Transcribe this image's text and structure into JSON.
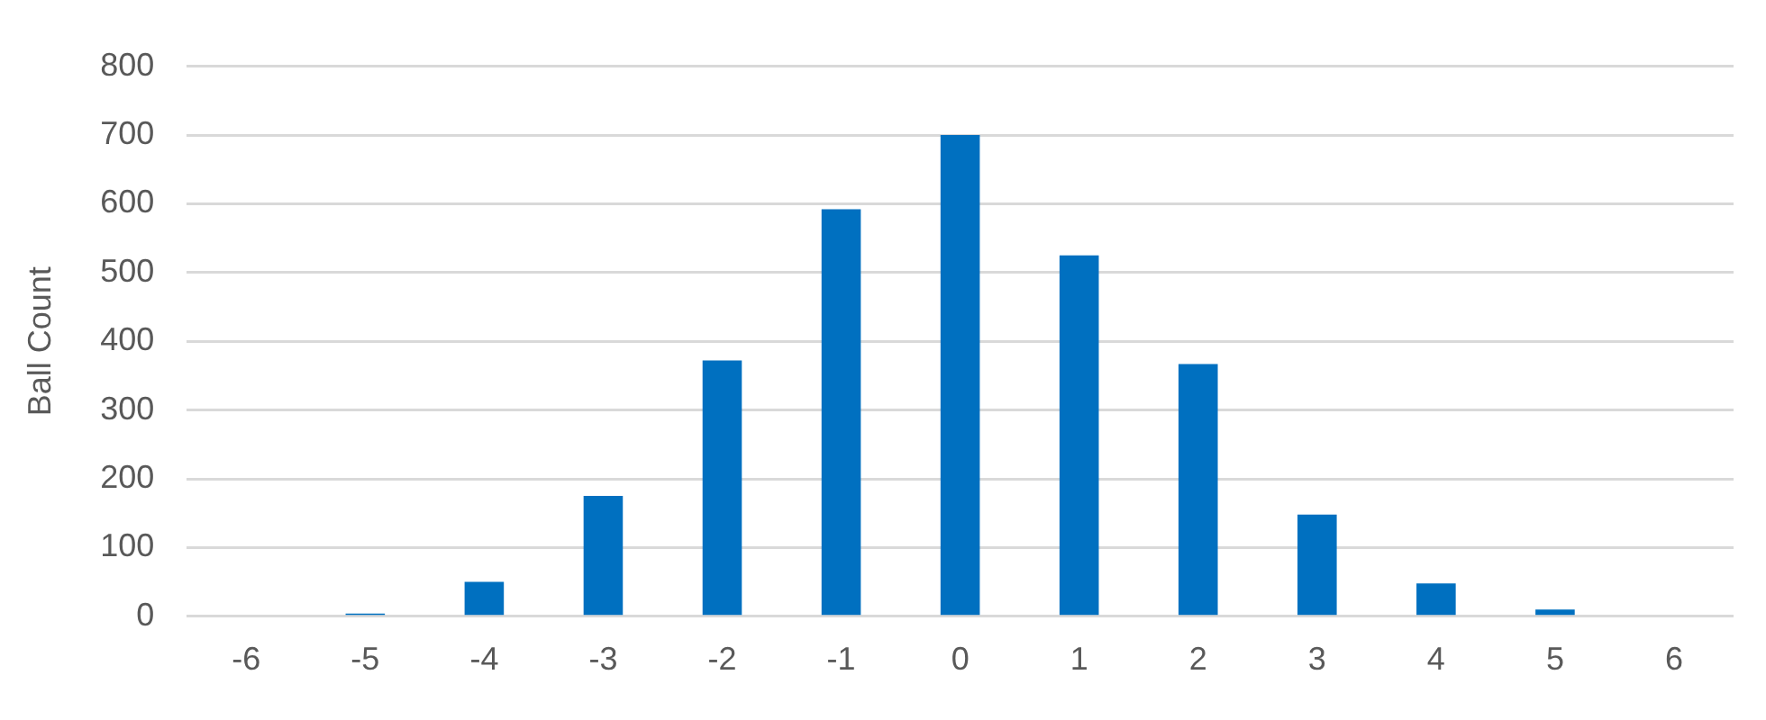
{
  "chart_data": {
    "type": "bar",
    "ylabel": "Ball Count",
    "categories": [
      "-6",
      "-5",
      "-4",
      "-3",
      "-2",
      "-1",
      "0",
      "1",
      "2",
      "3",
      "4",
      "5",
      "6"
    ],
    "values": [
      0,
      4,
      50,
      175,
      372,
      592,
      700,
      525,
      367,
      148,
      48,
      10,
      0
    ],
    "color": "#0070c0",
    "ylim": [
      0,
      800
    ],
    "yticks": [
      0,
      100,
      200,
      300,
      400,
      500,
      600,
      700,
      800
    ],
    "grid": "y",
    "legend": false
  }
}
